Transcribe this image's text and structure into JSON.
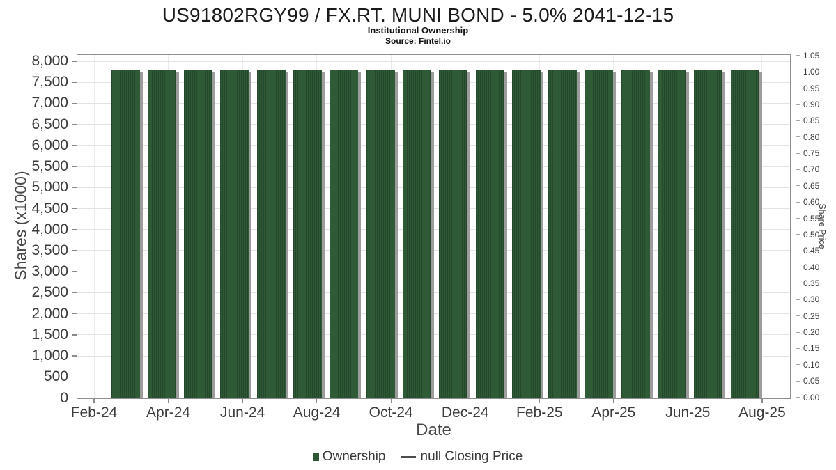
{
  "header": {
    "title": "US91802RGY99 / FX.RT. MUNI BOND - 5.0% 2041-12-15",
    "subtitle": "Institutional Ownership",
    "source": "Source: Fintel.io"
  },
  "legend": {
    "ownership_label": "Ownership",
    "price_label": "null Closing Price"
  },
  "colors": {
    "bar_green": "#2d5634",
    "bar_stripe_dark": "#25482c",
    "bar_shadow": "#9c9c9c",
    "grid_line": "#e3e3e3",
    "axis_border": "#8f8f8f",
    "tick_text": "#3c3c3c"
  },
  "chart_data": {
    "type": "bar",
    "title": "US91802RGY99 / FX.RT. MUNI BOND - 5.0% 2041-12-15",
    "subtitle": "Institutional Ownership",
    "source": "Source: Fintel.io",
    "xlabel": "Date",
    "ylabel_left": "Shares (x1000)",
    "ylabel_right": "Share Price",
    "grid": true,
    "legend_position": "bottom",
    "y_left_range": [
      0,
      8000
    ],
    "y_left_tick_step": 500,
    "y_right_range": [
      0,
      1.05
    ],
    "y_right_tick_step": 0.05,
    "categories": [
      "Feb-24",
      "Mar-24",
      "Apr-24",
      "May-24",
      "Jun-24",
      "Jul-24",
      "Aug-24",
      "Sep-24",
      "Oct-24",
      "Nov-24",
      "Dec-24",
      "Jan-25",
      "Feb-25",
      "Mar-25",
      "Apr-25",
      "May-25",
      "Jun-25",
      "Jul-25"
    ],
    "series": [
      {
        "name": "Ownership",
        "type": "bar",
        "color": "#2d5634",
        "values": [
          7800,
          7800,
          7800,
          7800,
          7800,
          7800,
          7800,
          7800,
          7800,
          7800,
          7800,
          7800,
          7800,
          7800,
          7800,
          7800,
          7800,
          7800
        ]
      },
      {
        "name": "null Closing Price",
        "type": "line",
        "values": []
      }
    ],
    "x_tick_labels": [
      "Feb-24",
      "Apr-24",
      "Jun-24",
      "Aug-24",
      "Oct-24",
      "Dec-24",
      "Feb-25",
      "Apr-25",
      "Jun-25",
      "Aug-25"
    ],
    "y_left_tick_labels": [
      "0",
      "500",
      "1,000",
      "1,500",
      "2,000",
      "2,500",
      "3,000",
      "3,500",
      "4,000",
      "4,500",
      "5,000",
      "5,500",
      "6,000",
      "6,500",
      "7,000",
      "7,500",
      "8,000"
    ],
    "y_right_tick_labels": [
      "0.00",
      "0.05",
      "0.10",
      "0.15",
      "0.20",
      "0.25",
      "0.30",
      "0.35",
      "0.40",
      "0.45",
      "0.50",
      "0.55",
      "0.60",
      "0.65",
      "0.70",
      "0.75",
      "0.80",
      "0.85",
      "0.90",
      "0.95",
      "1.00",
      "1.05"
    ]
  }
}
